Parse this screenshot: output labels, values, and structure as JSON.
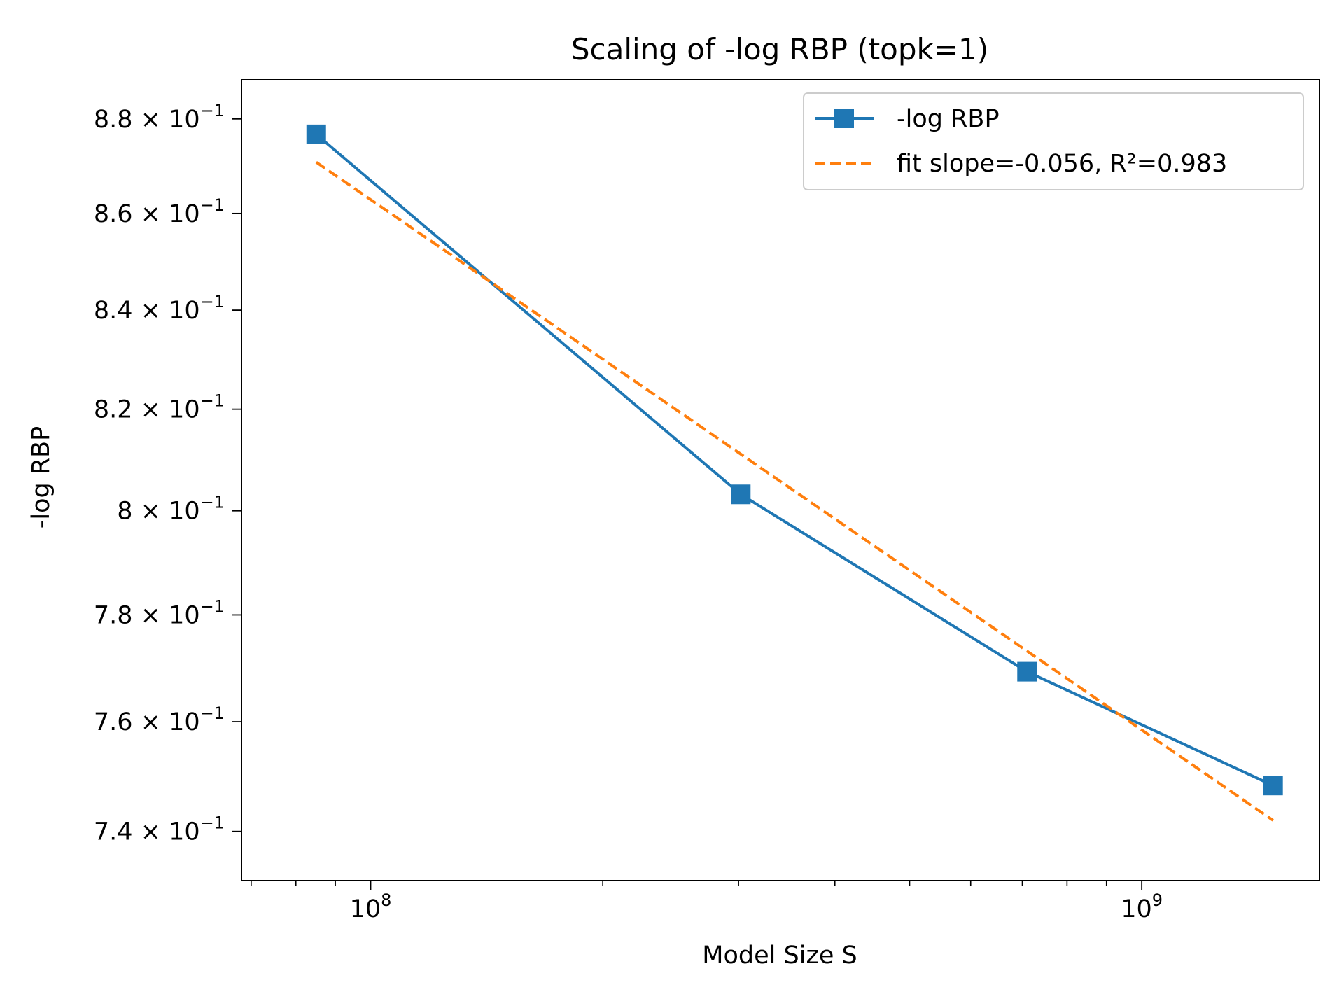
{
  "chart_data": {
    "type": "line",
    "title": "Scaling of -log RBP (topk=1)",
    "xlabel": "Model Size S",
    "ylabel": "-log RBP",
    "xscale": "log",
    "yscale": "log",
    "xlim": [
      68000000,
      1700000000
    ],
    "ylim": [
      0.7312,
      0.8884
    ],
    "x_ticks": [
      {
        "value": 100000000,
        "base": "10",
        "exp": "8"
      },
      {
        "value": 1000000000,
        "base": "10",
        "exp": "9"
      }
    ],
    "y_ticks": [
      {
        "value": 0.74,
        "mantissa": "7.4"
      },
      {
        "value": 0.76,
        "mantissa": "7.6"
      },
      {
        "value": 0.78,
        "mantissa": "7.8"
      },
      {
        "value": 0.8,
        "mantissa": "8"
      },
      {
        "value": 0.82,
        "mantissa": "8.2"
      },
      {
        "value": 0.84,
        "mantissa": "8.4"
      },
      {
        "value": 0.86,
        "mantissa": "8.6"
      },
      {
        "value": 0.88,
        "mantissa": "8.8"
      }
    ],
    "y_tick_suffix": "× 10",
    "y_tick_exp": "−1",
    "series": [
      {
        "name": "-log RBP",
        "color": "#1f77b4",
        "style": "solid",
        "marker": "square",
        "x": [
          85000000,
          302000000,
          710000000,
          1480000000
        ],
        "y": [
          0.8767,
          0.8032,
          0.7693,
          0.7483
        ]
      },
      {
        "name": "fit slope=-0.056, R²=0.983",
        "color": "#ff7f0e",
        "style": "dashed",
        "marker": "none",
        "x": [
          85000000,
          1480000000
        ],
        "y": [
          0.8708,
          0.742
        ]
      }
    ],
    "legend_position": "top-right",
    "grid": false
  }
}
